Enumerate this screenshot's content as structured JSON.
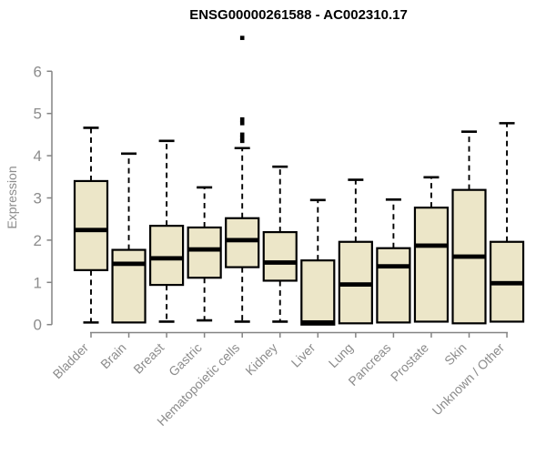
{
  "chart_data": {
    "type": "boxplot",
    "title": "ENSG00000261588 - AC002310.17",
    "ylabel": "Expression",
    "xlabel": "",
    "ylim": [
      0,
      6
    ],
    "yticks": [
      0,
      1,
      2,
      3,
      4,
      5,
      6
    ],
    "grid": false,
    "legend": "none",
    "colors": {
      "box_fill": "#ECE6C8",
      "box_border": "#000000",
      "median": "#000000",
      "whisker": "#000000",
      "axis_line": "#848484",
      "tick_label": "#8c8c8c",
      "title": "#000000"
    },
    "categories": [
      "Bladder",
      "Brain",
      "Breast",
      "Gastric",
      "Hematopoietic cells",
      "Kidney",
      "Liver",
      "Lung",
      "Pancreas",
      "Prostate",
      "Skin",
      "Unknown / Other"
    ],
    "boxes": [
      {
        "category": "Bladder",
        "min": 0.05,
        "q1": 1.29,
        "median": 2.24,
        "q3": 3.4,
        "max": 4.66,
        "outliers": []
      },
      {
        "category": "Brain",
        "min": 0.05,
        "q1": 0.05,
        "median": 1.44,
        "q3": 1.77,
        "max": 4.05,
        "outliers": []
      },
      {
        "category": "Breast",
        "min": 0.07,
        "q1": 0.94,
        "median": 1.57,
        "q3": 2.34,
        "max": 4.35,
        "outliers": []
      },
      {
        "category": "Gastric",
        "min": 0.1,
        "q1": 1.11,
        "median": 1.78,
        "q3": 2.3,
        "max": 3.25,
        "outliers": []
      },
      {
        "category": "Hematopoietic cells",
        "min": 0.07,
        "q1": 1.36,
        "median": 2.0,
        "q3": 2.52,
        "max": 4.18,
        "outliers": [
          4.35,
          4.42,
          4.5,
          4.77,
          4.86,
          6.79
        ]
      },
      {
        "category": "Kidney",
        "min": 0.07,
        "q1": 1.04,
        "median": 1.47,
        "q3": 2.19,
        "max": 3.74,
        "outliers": []
      },
      {
        "category": "Liver",
        "min": 0.0,
        "q1": 0.0,
        "median": 0.05,
        "q3": 1.52,
        "max": 2.95,
        "outliers": []
      },
      {
        "category": "Lung",
        "min": 0.03,
        "q1": 0.03,
        "median": 0.95,
        "q3": 1.96,
        "max": 3.43,
        "outliers": []
      },
      {
        "category": "Pancreas",
        "min": 0.05,
        "q1": 0.05,
        "median": 1.38,
        "q3": 1.81,
        "max": 2.96,
        "outliers": []
      },
      {
        "category": "Prostate",
        "min": 0.07,
        "q1": 0.07,
        "median": 1.87,
        "q3": 2.77,
        "max": 3.49,
        "outliers": []
      },
      {
        "category": "Skin",
        "min": 0.03,
        "q1": 0.03,
        "median": 1.61,
        "q3": 3.19,
        "max": 4.57,
        "outliers": []
      },
      {
        "category": "Unknown / Other",
        "min": 0.07,
        "q1": 0.07,
        "median": 0.98,
        "q3": 1.96,
        "max": 4.77,
        "outliers": []
      }
    ]
  }
}
